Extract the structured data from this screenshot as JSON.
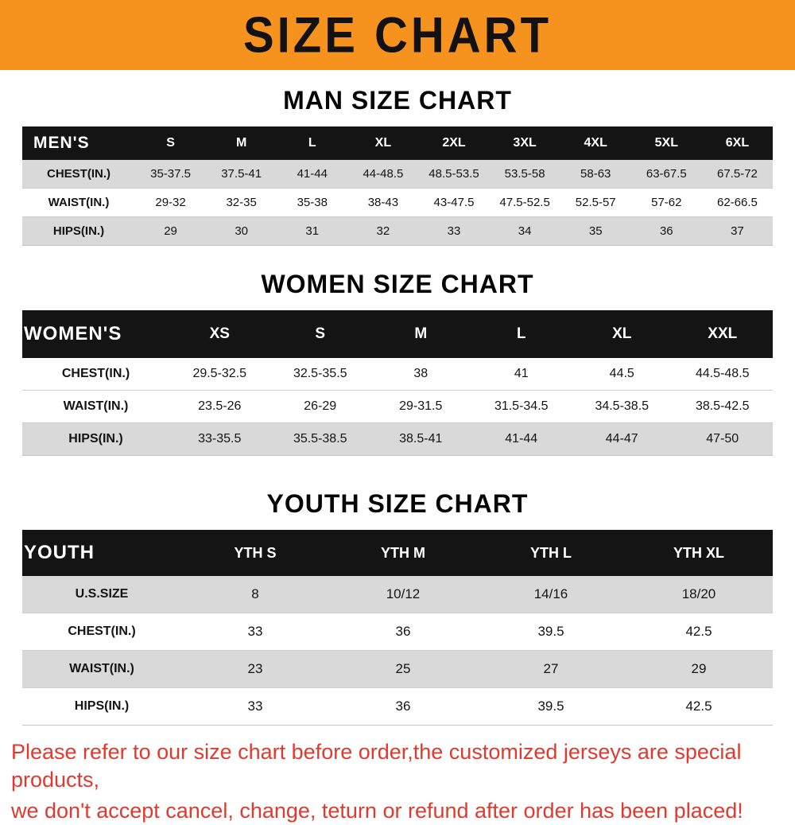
{
  "banner": {
    "title": "SIZE CHART"
  },
  "colors": {
    "banner_bg": "#F6921E",
    "table_header_bg": "#141414",
    "row_stripe": "#D9D9D9",
    "note_color": "#E03A2F",
    "title_color": "#121212"
  },
  "chart_data": [
    {
      "type": "table",
      "title": "MAN SIZE CHART",
      "label": "MEN'S",
      "columns": [
        "S",
        "M",
        "L",
        "XL",
        "2XL",
        "3XL",
        "4XL",
        "5XL",
        "6XL"
      ],
      "rows": [
        {
          "label": "CHEST(IN.)",
          "values": [
            "35-37.5",
            "37.5-41",
            "41-44",
            "44-48.5",
            "48.5-53.5",
            "53.5-58",
            "58-63",
            "63-67.5",
            "67.5-72"
          ]
        },
        {
          "label": "WAIST(IN.)",
          "values": [
            "29-32",
            "32-35",
            "35-38",
            "38-43",
            "43-47.5",
            "47.5-52.5",
            "52.5-57",
            "57-62",
            "62-66.5"
          ]
        },
        {
          "label": "HIPS(IN.)",
          "values": [
            "29",
            "30",
            "31",
            "32",
            "33",
            "34",
            "35",
            "36",
            "37"
          ]
        }
      ]
    },
    {
      "type": "table",
      "title": "WOMEN SIZE CHART",
      "label": "WOMEN'S",
      "columns": [
        "XS",
        "S",
        "M",
        "L",
        "XL",
        "XXL"
      ],
      "rows": [
        {
          "label": "CHEST(IN.)",
          "values": [
            "29.5-32.5",
            "32.5-35.5",
            "38",
            "41",
            "44.5",
            "44.5-48.5"
          ]
        },
        {
          "label": "WAIST(IN.)",
          "values": [
            "23.5-26",
            "26-29",
            "29-31.5",
            "31.5-34.5",
            "34.5-38.5",
            "38.5-42.5"
          ]
        },
        {
          "label": "HIPS(IN.)",
          "values": [
            "33-35.5",
            "35.5-38.5",
            "38.5-41",
            "41-44",
            "44-47",
            "47-50"
          ]
        }
      ]
    },
    {
      "type": "table",
      "title": "YOUTH SIZE CHART",
      "label": "YOUTH",
      "columns": [
        "YTH S",
        "YTH M",
        "YTH L",
        "YTH XL"
      ],
      "rows": [
        {
          "label": "U.S.SIZE",
          "values": [
            "8",
            "10/12",
            "14/16",
            "18/20"
          ]
        },
        {
          "label": "CHEST(IN.)",
          "values": [
            "33",
            "36",
            "39.5",
            "42.5"
          ]
        },
        {
          "label": "WAIST(IN.)",
          "values": [
            "23",
            "25",
            "27",
            "29"
          ]
        },
        {
          "label": "HIPS(IN.)",
          "values": [
            "33",
            "36",
            "39.5",
            "42.5"
          ]
        }
      ]
    }
  ],
  "footer": {
    "line1": "Please refer to our size chart before order,the customized jerseys are special products,",
    "line2": "we don't accept cancel, change, teturn or refund after order has been placed!"
  }
}
